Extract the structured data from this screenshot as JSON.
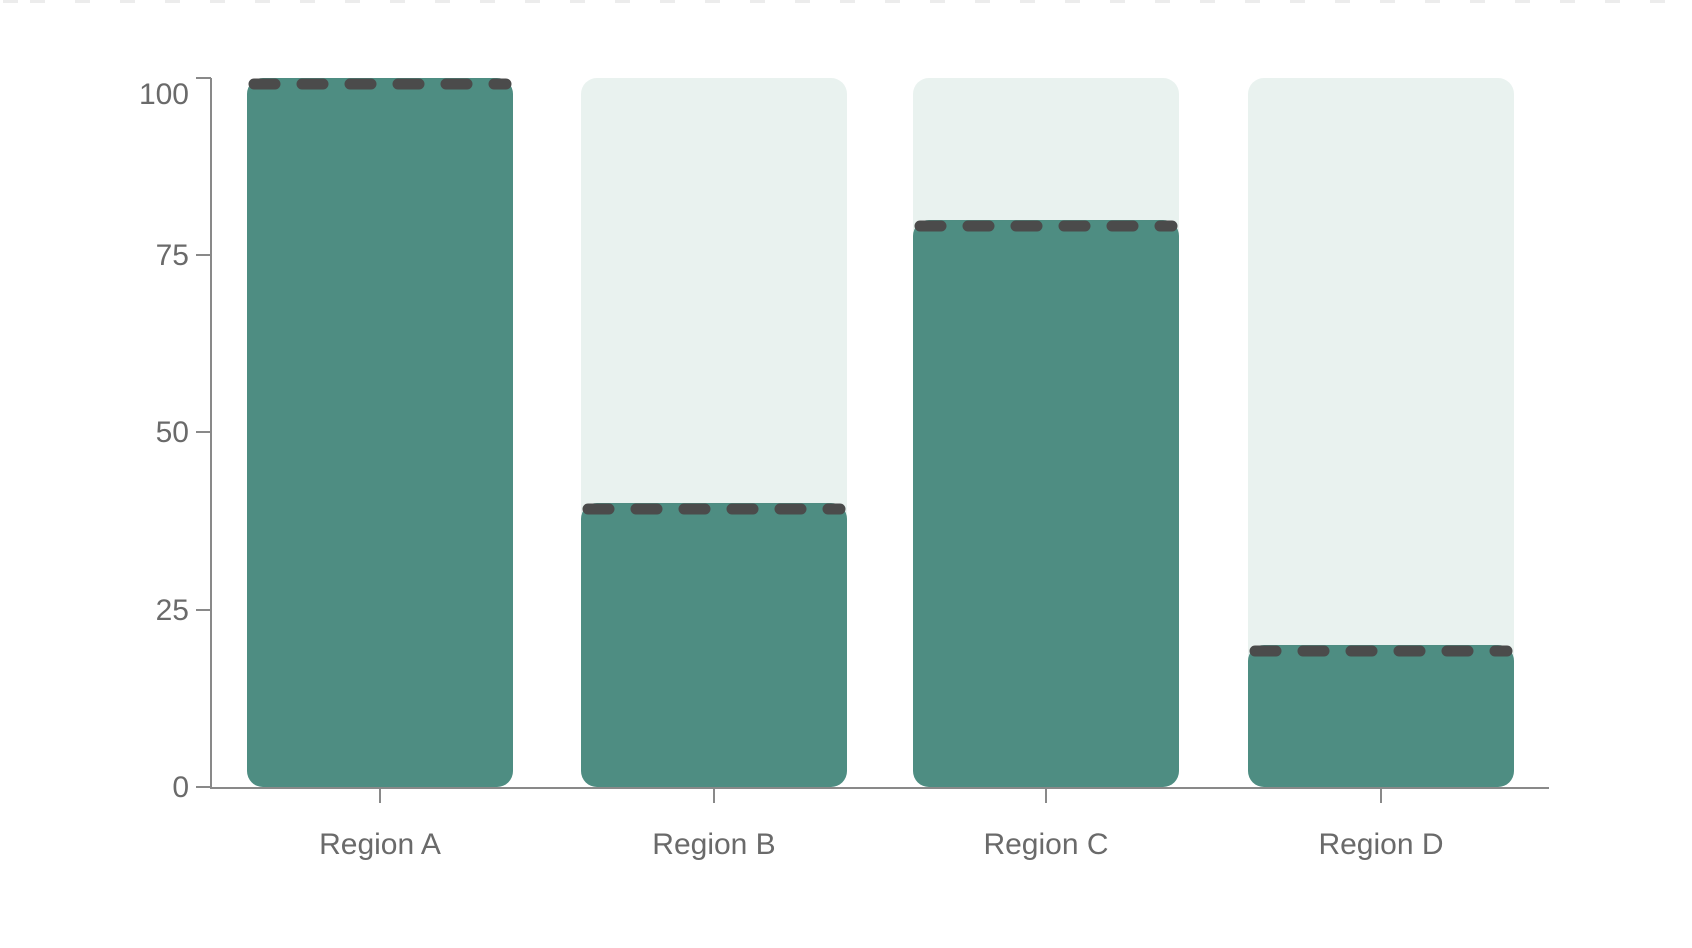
{
  "page": {
    "background": "#ffffff"
  },
  "decoration": {
    "top_dashed_border_color": "#ececec"
  },
  "chart_data": {
    "type": "bar",
    "title": "",
    "xlabel": "",
    "ylabel": "",
    "categories": [
      "Region A",
      "Region B",
      "Region C",
      "Region D"
    ],
    "series": [
      {
        "name": "value",
        "values": [
          100,
          40,
          80,
          20
        ]
      }
    ],
    "target_values": [
      100,
      40,
      80,
      20
    ],
    "target_style": "dashed-overlay-at-bar-top",
    "ylim": [
      0,
      100
    ],
    "yticks": [
      0,
      25,
      50,
      75,
      100
    ],
    "ytick_labels": [
      "0",
      "25",
      "50",
      "75",
      "100"
    ],
    "grid": false,
    "legend": false,
    "track_to_max": true,
    "colors": {
      "bar": "#4e8d82",
      "track": "#e9f2ef",
      "target_dash": "#4b4b4b",
      "axis": "#898989",
      "tick_label": "#6a6a6a"
    }
  }
}
